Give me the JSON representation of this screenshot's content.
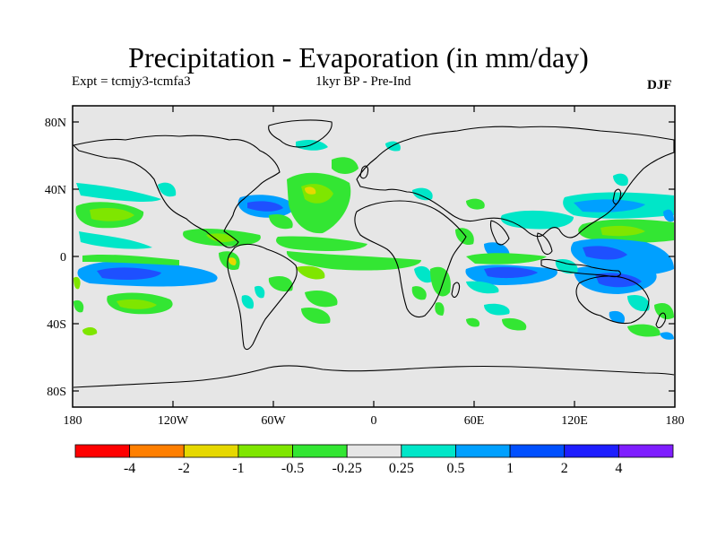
{
  "title": "Precipitation - Evaporation (in mm/day)",
  "experiment": "Expt = tcmjy3-tcmfa3",
  "period": "1kyr BP - Pre-Ind",
  "season": "DJF",
  "map": {
    "projection": "equirectangular",
    "lon_range": [
      -180,
      180
    ],
    "lat_range": [
      -90,
      90
    ],
    "background": "#e6e6e6",
    "lat_ticks": [
      "80N",
      "40N",
      "0",
      "40S",
      "80S"
    ],
    "lon_ticks": [
      "180",
      "120W",
      "60W",
      "0",
      "60E",
      "120E",
      "180"
    ]
  },
  "colorbar": {
    "colors": [
      "#ff0000",
      "#ff7f00",
      "#e6d800",
      "#7fe600",
      "#33e633",
      "#e6e6e6",
      "#00e6c8",
      "#00a0ff",
      "#0050ff",
      "#1e1eff",
      "#7f1eff"
    ],
    "labels": [
      "-4",
      "-2",
      "-1",
      "-0.5",
      "-0.25",
      "0.25",
      "0.5",
      "1",
      "2",
      "4"
    ]
  },
  "colors": {
    "land_outline": "#000000",
    "dry_mid": "#7fe600",
    "dry_weak": "#33e633",
    "wet_weak": "#00e6c8",
    "wet_mid": "#00a0ff",
    "wet_strong": "#0050ff",
    "dry_strong": "#e6d800"
  }
}
